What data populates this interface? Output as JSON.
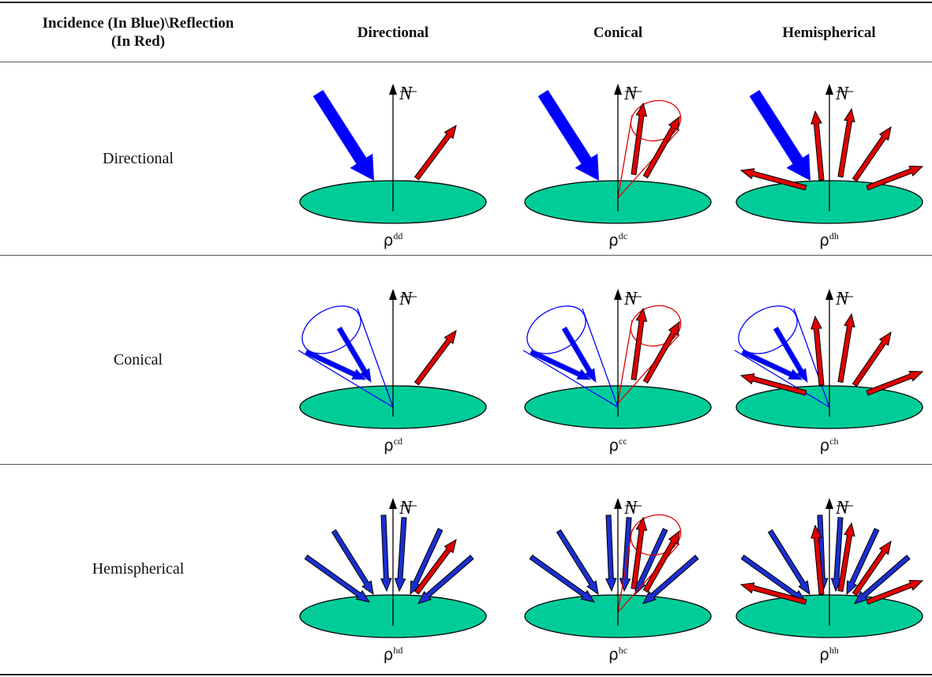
{
  "table": {
    "header": [
      "Incidence (In Blue)\\Reflection (In Red)",
      "Directional",
      "Conical",
      "Hemispherical"
    ],
    "normal_label": "N",
    "rows": [
      {
        "label": "Directional",
        "cells": [
          {
            "symbol": "ρ",
            "sup": "dd"
          },
          {
            "symbol": "ρ",
            "sup": "dc"
          },
          {
            "symbol": "ρ",
            "sup": "dh"
          }
        ]
      },
      {
        "label": "Conical",
        "cells": [
          {
            "symbol": "ρ",
            "sup": "cd"
          },
          {
            "symbol": "ρ",
            "sup": "cc"
          },
          {
            "symbol": "ρ",
            "sup": "ch"
          }
        ]
      },
      {
        "label": "Hemispherical",
        "cells": [
          {
            "symbol": "ρ",
            "sup": "hd"
          },
          {
            "symbol": "ρ",
            "sup": "hc"
          },
          {
            "symbol": "ρ",
            "sup": "hh"
          }
        ]
      }
    ]
  }
}
